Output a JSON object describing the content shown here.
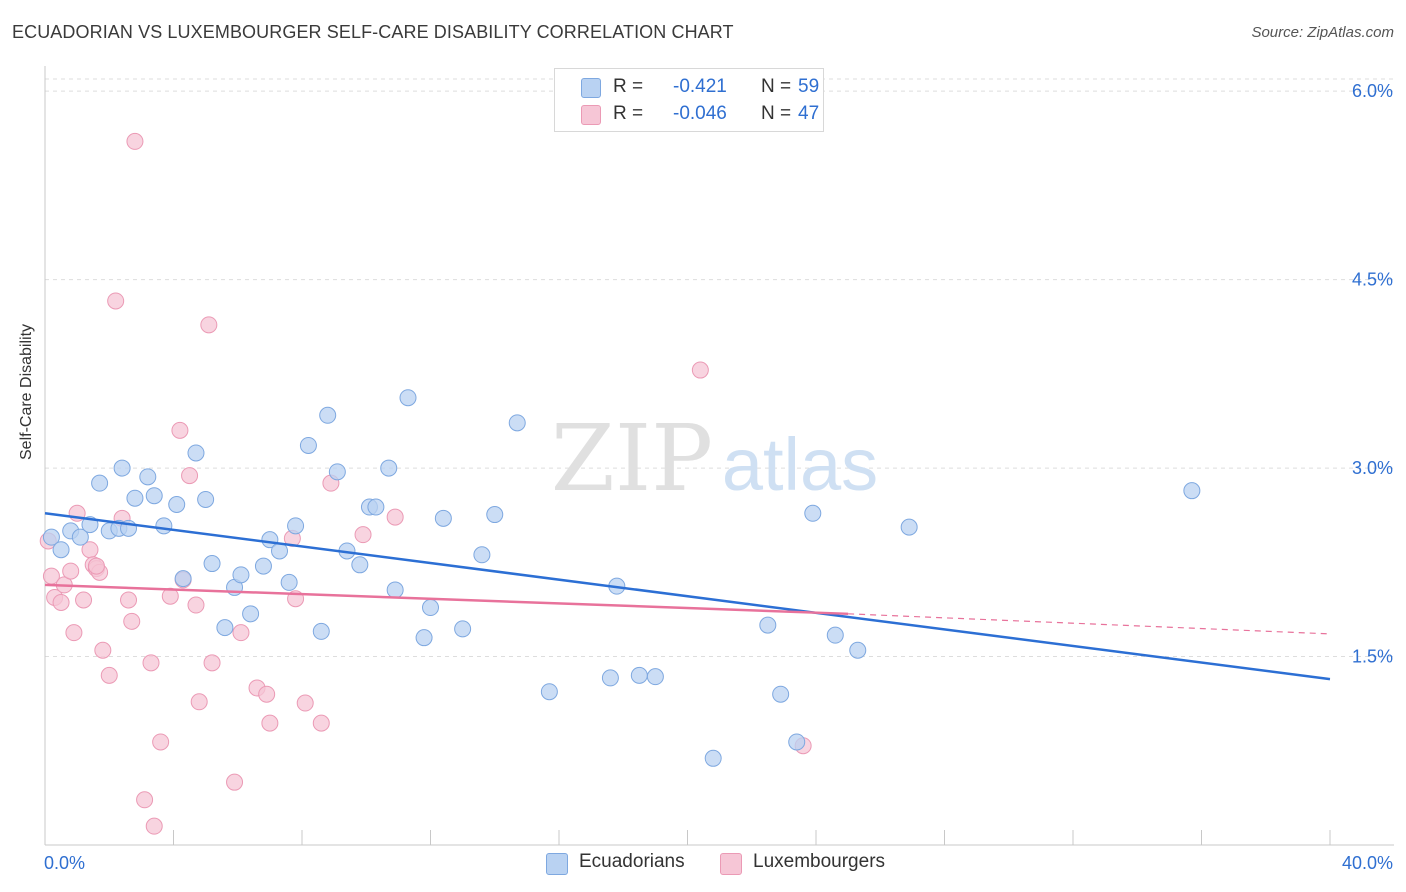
{
  "header": {
    "title": "ECUADORIAN VS LUXEMBOURGER SELF-CARE DISABILITY CORRELATION CHART",
    "source": "Source: ZipAtlas.com"
  },
  "watermark": {
    "zip": "ZIP",
    "atlas": "atlas"
  },
  "legend_top": {
    "r_label": "R =",
    "n_label": "N =",
    "rows": [
      {
        "r_value": "-0.421",
        "n_value": "59"
      },
      {
        "r_value": "-0.046",
        "n_value": "47"
      }
    ]
  },
  "legend_bottom": [
    "Ecuadorians",
    "Luxembourgers"
  ],
  "colors": {
    "blue_fill": "#b9d2f2",
    "blue_stroke": "#7ea8e0",
    "blue_line": "#2c6fd4",
    "pink_fill": "#f6c6d6",
    "pink_stroke": "#eb9ab5",
    "pink_line": "#e8729b",
    "tick_text": "#2f6fd1",
    "grid": "#dddddd"
  },
  "chart_data": {
    "type": "scatter",
    "title": "ECUADORIAN VS LUXEMBOURGER SELF-CARE DISABILITY CORRELATION CHART",
    "xlabel": "",
    "ylabel": "Self-Care Disability",
    "xlim": [
      0,
      40
    ],
    "ylim": [
      0,
      6.2
    ],
    "x_tick_labels": [
      "0.0%",
      "40.0%"
    ],
    "y_ticks": [
      1.5,
      3.0,
      4.5,
      6.0
    ],
    "y_tick_labels": [
      "1.5%",
      "3.0%",
      "4.5%",
      "6.0%"
    ],
    "grid": true,
    "legend_position": "top-center",
    "series": [
      {
        "name": "Ecuadorians",
        "r": -0.421,
        "n": 59,
        "trend": {
          "x": [
            0,
            40
          ],
          "y": [
            2.64,
            1.32
          ]
        },
        "points": [
          [
            0.2,
            2.45
          ],
          [
            0.5,
            2.35
          ],
          [
            0.8,
            2.5
          ],
          [
            1.1,
            2.45
          ],
          [
            1.4,
            2.55
          ],
          [
            1.7,
            2.88
          ],
          [
            2.0,
            2.5
          ],
          [
            2.3,
            2.52
          ],
          [
            2.4,
            3.0
          ],
          [
            2.6,
            2.52
          ],
          [
            2.8,
            2.76
          ],
          [
            3.2,
            2.93
          ],
          [
            3.4,
            2.78
          ],
          [
            3.7,
            2.54
          ],
          [
            4.1,
            2.71
          ],
          [
            4.3,
            2.12
          ],
          [
            4.7,
            3.12
          ],
          [
            5.0,
            2.75
          ],
          [
            5.2,
            2.24
          ],
          [
            5.6,
            1.73
          ],
          [
            5.9,
            2.05
          ],
          [
            6.1,
            2.15
          ],
          [
            6.4,
            1.84
          ],
          [
            6.8,
            2.22
          ],
          [
            7.0,
            2.43
          ],
          [
            7.3,
            2.34
          ],
          [
            7.6,
            2.09
          ],
          [
            7.8,
            2.54
          ],
          [
            8.2,
            3.18
          ],
          [
            8.6,
            1.7
          ],
          [
            8.8,
            3.42
          ],
          [
            9.1,
            2.97
          ],
          [
            9.4,
            2.34
          ],
          [
            9.8,
            2.23
          ],
          [
            10.1,
            2.69
          ],
          [
            10.3,
            2.69
          ],
          [
            10.7,
            3.0
          ],
          [
            10.9,
            2.03
          ],
          [
            11.3,
            3.56
          ],
          [
            11.8,
            1.65
          ],
          [
            12.0,
            1.89
          ],
          [
            12.4,
            2.6
          ],
          [
            13.0,
            1.72
          ],
          [
            13.6,
            2.31
          ],
          [
            14.0,
            2.63
          ],
          [
            14.7,
            3.36
          ],
          [
            15.7,
            1.22
          ],
          [
            17.6,
            1.33
          ],
          [
            17.8,
            2.06
          ],
          [
            18.5,
            1.35
          ],
          [
            19.0,
            1.34
          ],
          [
            20.8,
            0.69
          ],
          [
            22.5,
            1.75
          ],
          [
            22.9,
            1.2
          ],
          [
            23.4,
            0.82
          ],
          [
            23.9,
            2.64
          ],
          [
            24.6,
            1.67
          ],
          [
            25.3,
            1.55
          ],
          [
            26.9,
            2.53
          ],
          [
            35.7,
            2.82
          ]
        ]
      },
      {
        "name": "Luxembourgers",
        "r": -0.046,
        "n": 47,
        "trend": {
          "x": [
            0,
            25
          ],
          "y": [
            2.07,
            1.84
          ],
          "dashed_x": [
            25,
            40
          ],
          "dashed_y": [
            1.84,
            1.68
          ]
        },
        "points": [
          [
            0.1,
            2.42
          ],
          [
            0.2,
            2.14
          ],
          [
            0.3,
            1.97
          ],
          [
            0.5,
            1.93
          ],
          [
            0.6,
            2.07
          ],
          [
            0.8,
            2.18
          ],
          [
            0.9,
            1.69
          ],
          [
            1.0,
            2.64
          ],
          [
            1.2,
            1.95
          ],
          [
            1.4,
            2.35
          ],
          [
            1.5,
            2.23
          ],
          [
            1.6,
            2.2
          ],
          [
            1.7,
            2.17
          ],
          [
            1.8,
            1.55
          ],
          [
            2.0,
            1.35
          ],
          [
            2.2,
            4.33
          ],
          [
            2.4,
            2.6
          ],
          [
            2.6,
            1.95
          ],
          [
            2.7,
            1.78
          ],
          [
            2.8,
            5.6
          ],
          [
            3.3,
            1.45
          ],
          [
            3.4,
            0.15
          ],
          [
            3.6,
            0.82
          ],
          [
            3.9,
            1.98
          ],
          [
            4.2,
            3.3
          ],
          [
            4.3,
            2.11
          ],
          [
            4.5,
            2.94
          ],
          [
            4.7,
            1.91
          ],
          [
            4.8,
            1.14
          ],
          [
            5.1,
            4.14
          ],
          [
            5.2,
            1.45
          ],
          [
            5.9,
            0.5
          ],
          [
            6.1,
            1.69
          ],
          [
            6.6,
            1.25
          ],
          [
            6.9,
            1.2
          ],
          [
            7.0,
            0.97
          ],
          [
            7.7,
            2.44
          ],
          [
            7.8,
            1.96
          ],
          [
            8.1,
            1.13
          ],
          [
            8.6,
            0.97
          ],
          [
            8.9,
            2.88
          ],
          [
            9.9,
            2.47
          ],
          [
            10.9,
            2.61
          ],
          [
            20.4,
            3.78
          ],
          [
            23.6,
            0.79
          ],
          [
            3.1,
            0.36
          ],
          [
            1.6,
            2.22
          ]
        ]
      }
    ]
  }
}
